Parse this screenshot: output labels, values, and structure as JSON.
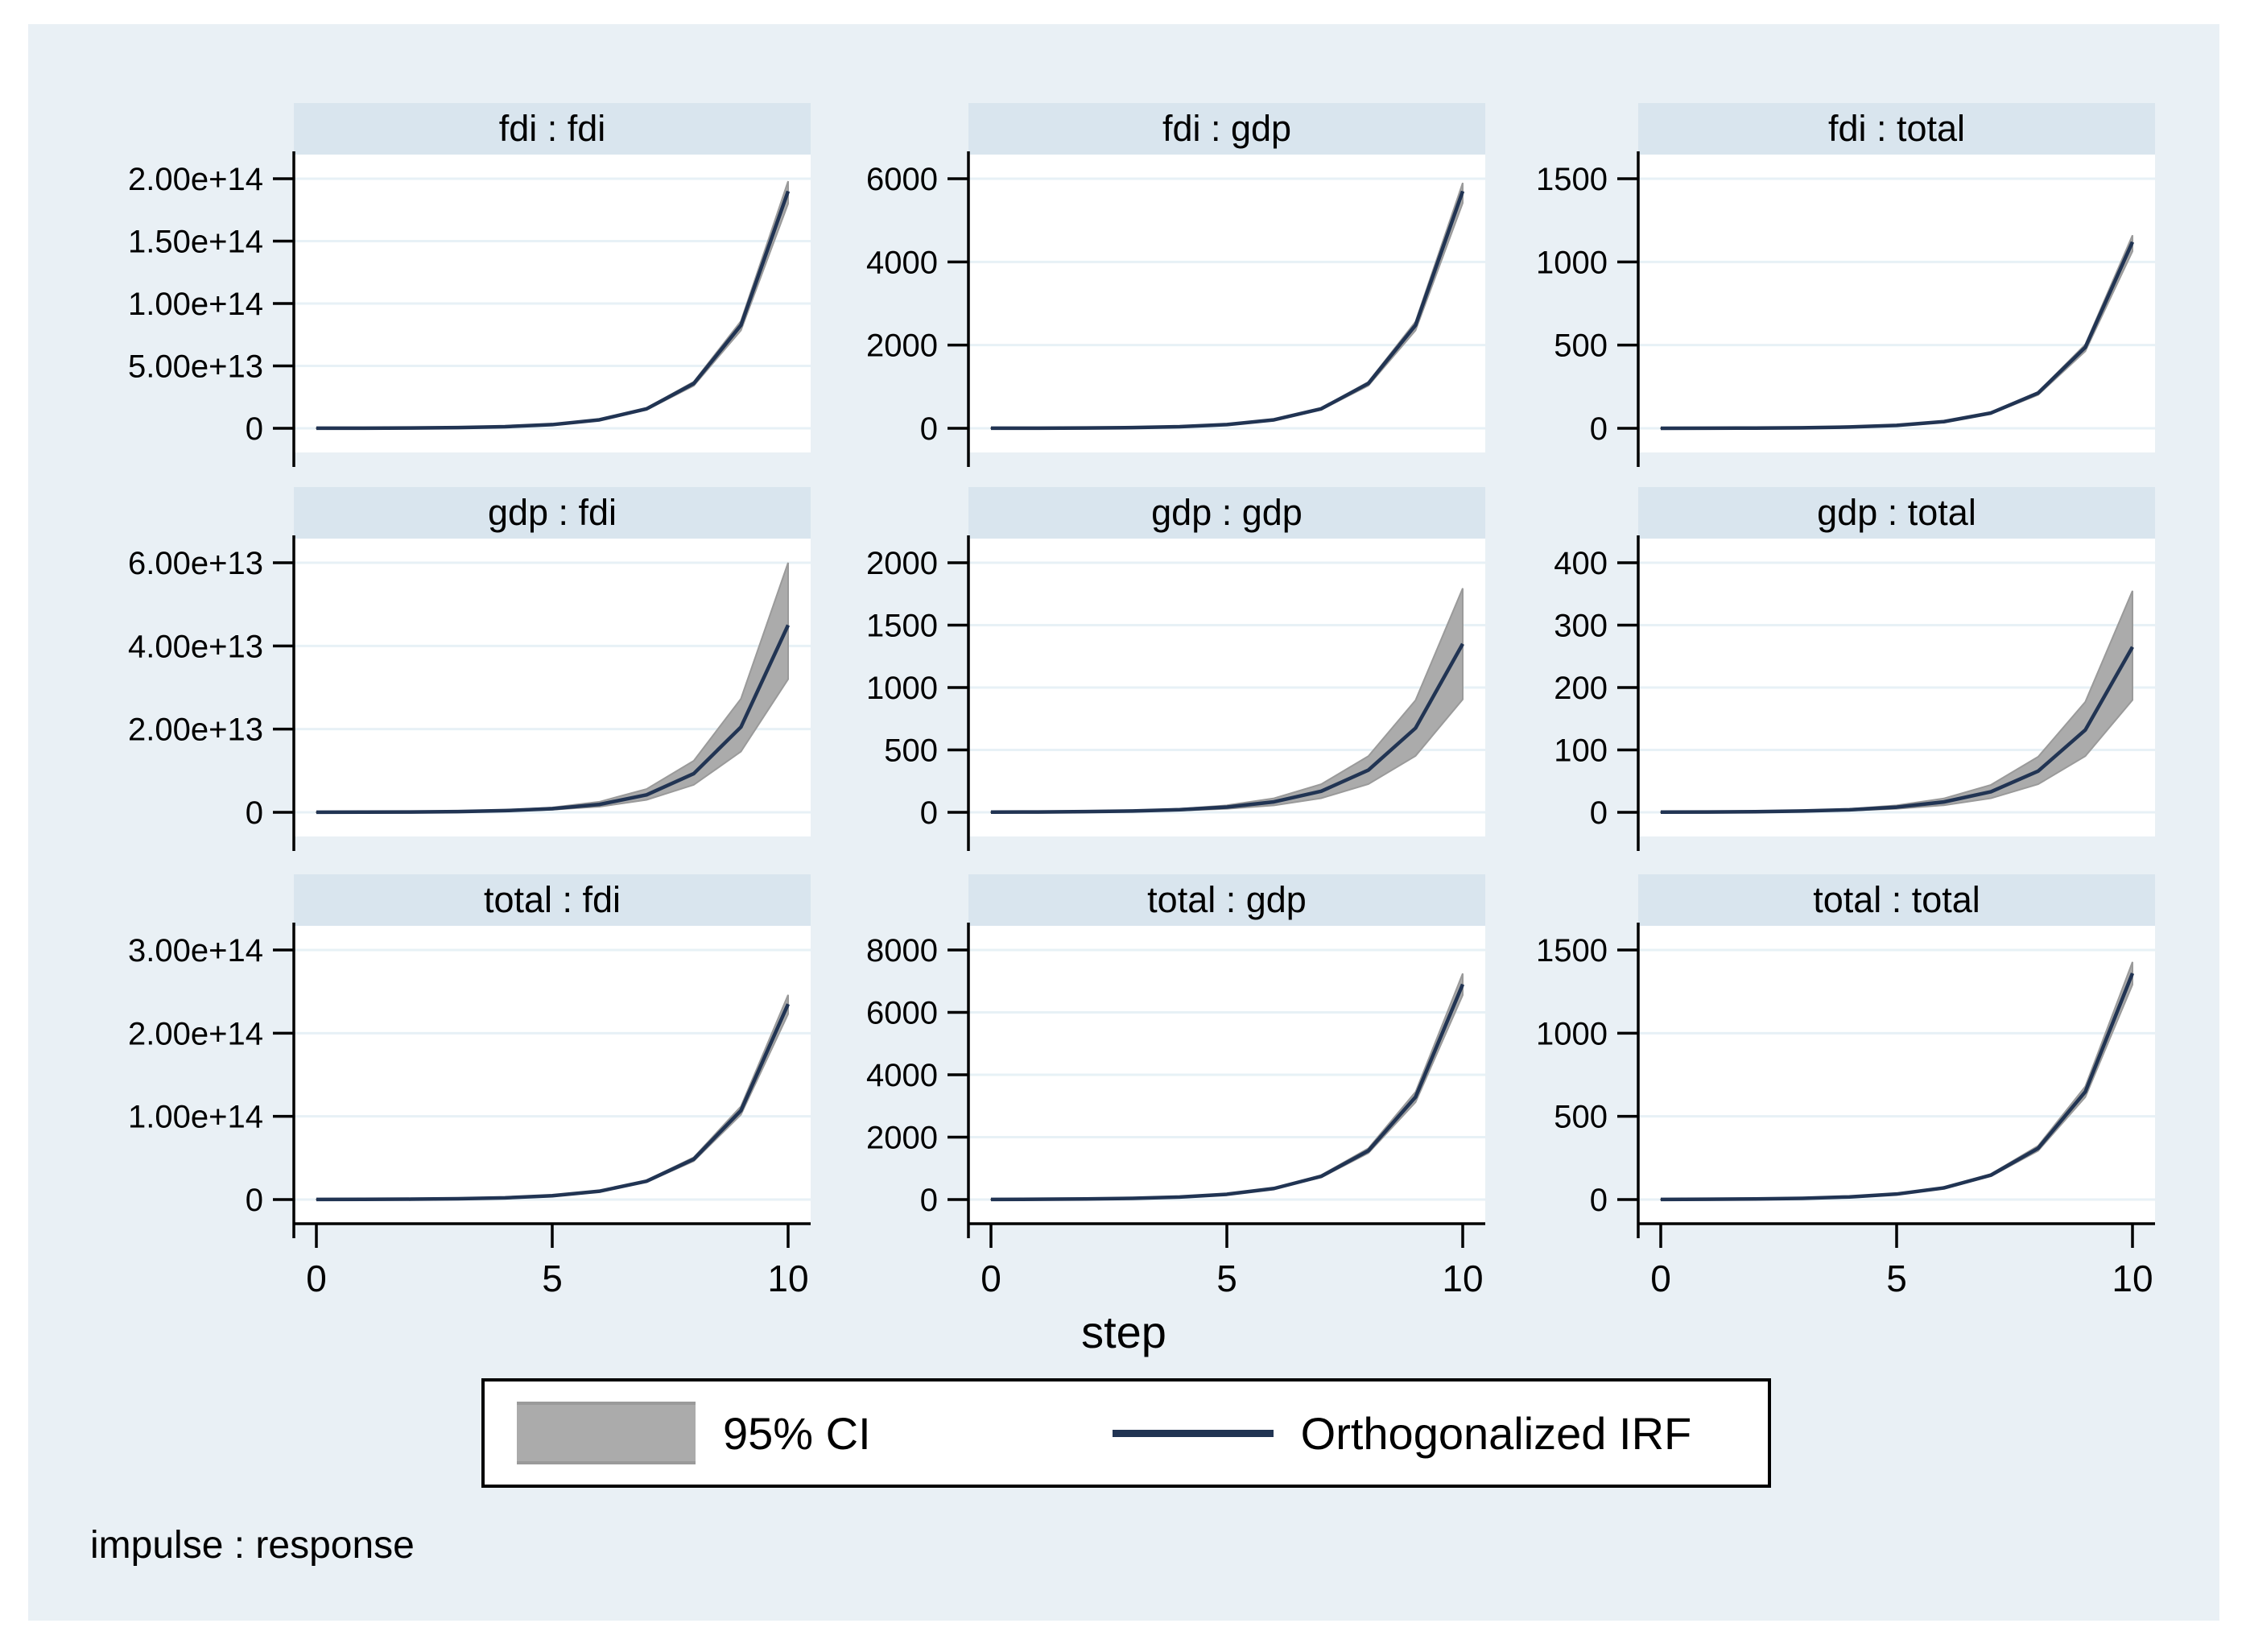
{
  "figure": {
    "xlabel": "step",
    "footer": "impulse : response",
    "colors": {
      "canvas_bg": "#e9f0f5",
      "panel_title_bg": "#d9e5ee",
      "plot_bg": "#ffffff",
      "gridline": "#e7f1f6",
      "axis": "#000000",
      "irf_line_navy": "#213453",
      "ci_band_gray": "#ababab",
      "ci_band_edge": "#9a9a9a"
    }
  },
  "legend": {
    "items": [
      {
        "swatch": "ci-band-swatch",
        "label": "95% CI"
      },
      {
        "swatch": "irf-line-swatch",
        "label": "Orthogonalized IRF"
      }
    ]
  },
  "chart_data": [
    {
      "type": "area",
      "title": "fdi : fdi",
      "impulse": "fdi",
      "response": "fdi",
      "x": [
        0,
        1,
        2,
        3,
        4,
        5,
        6,
        7,
        8,
        9,
        10
      ],
      "mid": [
        46000000000.0,
        105000000000.0,
        243000000000.0,
        558000000000.0,
        1280000000000.0,
        2950000000000.0,
        6790000000000.0,
        15600000000000.0,
        35900000000000.0,
        82600000000000.0,
        190000000000000.0
      ],
      "lo": [
        44000000000.0,
        100000000000.0,
        231000000000.0,
        530000000000.0,
        1220000000000.0,
        2800000000000.0,
        6450000000000.0,
        14800000000000.0,
        34100000000000.0,
        78500000000000.0,
        180000000000000.0
      ],
      "hi": [
        48000000000.0,
        109000000000.0,
        253000000000.0,
        580000000000.0,
        1330000000000.0,
        3070000000000.0,
        7060000000000.0,
        16200000000000.0,
        37300000000000.0,
        85900000000000.0,
        198000000000000.0
      ],
      "ymax": 200000000000000.0,
      "yticks": [
        {
          "v": 0,
          "label": "0"
        },
        {
          "v": 50000000000000.0,
          "label": "5.00e+13"
        },
        {
          "v": 100000000000000.0,
          "label": "1.00e+14"
        },
        {
          "v": 150000000000000.0,
          "label": "1.50e+14"
        },
        {
          "v": 200000000000000.0,
          "label": "2.00e+14"
        }
      ],
      "xticks": [
        {
          "v": 0,
          "label": "0"
        },
        {
          "v": 5,
          "label": "5"
        },
        {
          "v": 10,
          "label": "10"
        }
      ],
      "show_xaxis": false
    },
    {
      "type": "area",
      "title": "fdi : gdp",
      "impulse": "fdi",
      "response": "gdp",
      "x": [
        0,
        1,
        2,
        3,
        4,
        5,
        6,
        7,
        8,
        9,
        10
      ],
      "mid": [
        1.4,
        3.2,
        7.3,
        16.7,
        38.5,
        89,
        204,
        469,
        1078,
        2478,
        5700
      ],
      "lo": [
        1.3,
        3.0,
        6.9,
        15.9,
        36.6,
        85,
        194,
        446,
        1024,
        2354,
        5415
      ],
      "hi": [
        1.5,
        3.3,
        7.6,
        17.3,
        39.8,
        92,
        211,
        485,
        1116,
        2565,
        5900
      ],
      "ymax": 6000,
      "yticks": [
        {
          "v": 0,
          "label": "0"
        },
        {
          "v": 2000,
          "label": "2000"
        },
        {
          "v": 4000,
          "label": "4000"
        },
        {
          "v": 6000,
          "label": "6000"
        }
      ],
      "xticks": [
        {
          "v": 0,
          "label": "0"
        },
        {
          "v": 5,
          "label": "5"
        },
        {
          "v": 10,
          "label": "10"
        }
      ],
      "show_xaxis": false
    },
    {
      "type": "area",
      "title": "fdi : total",
      "impulse": "fdi",
      "response": "total",
      "x": [
        0,
        1,
        2,
        3,
        4,
        5,
        6,
        7,
        8,
        9,
        10
      ],
      "mid": [
        0.27,
        0.63,
        1.44,
        3.3,
        7.6,
        17.4,
        40,
        92,
        212,
        487,
        1120
      ],
      "lo": [
        0.26,
        0.6,
        1.37,
        3.1,
        7.2,
        16.5,
        38,
        87,
        201,
        463,
        1064
      ],
      "hi": [
        0.28,
        0.66,
        1.5,
        3.4,
        7.9,
        18.0,
        42,
        95,
        219,
        504,
        1160
      ],
      "ymax": 1500,
      "yticks": [
        {
          "v": 0,
          "label": "0"
        },
        {
          "v": 500,
          "label": "500"
        },
        {
          "v": 1000,
          "label": "1000"
        },
        {
          "v": 1500,
          "label": "1500"
        }
      ],
      "xticks": [
        {
          "v": 0,
          "label": "0"
        },
        {
          "v": 5,
          "label": "5"
        },
        {
          "v": 10,
          "label": "10"
        }
      ],
      "show_xaxis": false
    },
    {
      "type": "area",
      "title": "gdp : fdi",
      "impulse": "gdp",
      "response": "fdi",
      "x": [
        0,
        1,
        2,
        3,
        4,
        5,
        6,
        7,
        8,
        9,
        10
      ],
      "mid": [
        17000000000.0,
        37000000000.0,
        82000000000.0,
        180000000000.0,
        400000000000.0,
        870000000000.0,
        1900000000000.0,
        4200000000000.0,
        9300000000000.0,
        20500000000000.0,
        45000000000000.0
      ],
      "lo": [
        12000000000.0,
        26000000000.0,
        58000000000.0,
        130000000000.0,
        280000000000.0,
        620000000000.0,
        1350000000000.0,
        3000000000000.0,
        6600000000000.0,
        14600000000000.0,
        32000000000000.0
      ],
      "hi": [
        23000000000.0,
        49000000000.0,
        110000000000.0,
        240000000000.0,
        530000000000.0,
        1160000000000.0,
        2530000000000.0,
        5600000000000.0,
        12400000000000.0,
        27300000000000.0,
        60000000000000.0
      ],
      "ymax": 60000000000000.0,
      "yticks": [
        {
          "v": 0,
          "label": "0"
        },
        {
          "v": 20000000000000.0,
          "label": "2.00e+13"
        },
        {
          "v": 40000000000000.0,
          "label": "4.00e+13"
        },
        {
          "v": 60000000000000.0,
          "label": "6.00e+13"
        }
      ],
      "xticks": [
        {
          "v": 0,
          "label": "0"
        },
        {
          "v": 5,
          "label": "5"
        },
        {
          "v": 10,
          "label": "10"
        }
      ],
      "show_xaxis": false
    },
    {
      "type": "area",
      "title": "gdp : gdp",
      "impulse": "gdp",
      "response": "gdp",
      "x": [
        0,
        1,
        2,
        3,
        4,
        5,
        6,
        7,
        8,
        9,
        10
      ],
      "mid": [
        1.3,
        2.6,
        5.3,
        10.5,
        21,
        42,
        84,
        169,
        338,
        675,
        1350
      ],
      "lo": [
        0.9,
        1.7,
        3.5,
        7.0,
        14,
        28,
        56,
        113,
        226,
        452,
        905
      ],
      "hi": [
        1.7,
        3.5,
        7.0,
        14,
        28,
        56,
        112,
        225,
        450,
        898,
        1795
      ],
      "ymax": 2000,
      "yticks": [
        {
          "v": 0,
          "label": "0"
        },
        {
          "v": 500,
          "label": "500"
        },
        {
          "v": 1000,
          "label": "1000"
        },
        {
          "v": 1500,
          "label": "1500"
        },
        {
          "v": 2000,
          "label": "2000"
        }
      ],
      "xticks": [
        {
          "v": 0,
          "label": "0"
        },
        {
          "v": 5,
          "label": "5"
        },
        {
          "v": 10,
          "label": "10"
        }
      ],
      "show_xaxis": false
    },
    {
      "type": "area",
      "title": "gdp : total",
      "impulse": "gdp",
      "response": "total",
      "x": [
        0,
        1,
        2,
        3,
        4,
        5,
        6,
        7,
        8,
        9,
        10
      ],
      "mid": [
        0.26,
        0.52,
        1.0,
        2.1,
        4.1,
        8.3,
        16.6,
        33,
        66,
        132,
        265
      ],
      "lo": [
        0.18,
        0.35,
        0.7,
        1.4,
        2.8,
        5.6,
        11.3,
        22.5,
        45,
        90,
        180
      ],
      "hi": [
        0.35,
        0.69,
        1.4,
        2.8,
        5.5,
        11.1,
        22.2,
        44,
        89,
        177,
        355
      ],
      "ymax": 400,
      "yticks": [
        {
          "v": 0,
          "label": "0"
        },
        {
          "v": 100,
          "label": "100"
        },
        {
          "v": 200,
          "label": "200"
        },
        {
          "v": 300,
          "label": "300"
        },
        {
          "v": 400,
          "label": "400"
        }
      ],
      "xticks": [
        {
          "v": 0,
          "label": "0"
        },
        {
          "v": 5,
          "label": "5"
        },
        {
          "v": 10,
          "label": "10"
        }
      ],
      "show_xaxis": false
    },
    {
      "type": "area",
      "title": "total : fdi",
      "impulse": "total",
      "response": "fdi",
      "x": [
        0,
        1,
        2,
        3,
        4,
        5,
        6,
        7,
        8,
        9,
        10
      ],
      "mid": [
        89000000000.0,
        195000000000.0,
        430000000000.0,
        940000000000.0,
        2070000000000.0,
        4560000000000.0,
        10000000000000.0,
        22100000000000.0,
        48600000000000.0,
        107000000000000.0,
        235000000000000.0
      ],
      "lo": [
        85000000000.0,
        185000000000.0,
        410000000000.0,
        890000000000.0,
        1970000000000.0,
        4330000000000.0,
        9500000000000.0,
        21000000000000.0,
        46200000000000.0,
        102000000000000.0,
        223000000000000.0
      ],
      "hi": [
        93000000000.0,
        204000000000.0,
        450000000000.0,
        980000000000.0,
        2160000000000.0,
        4770000000000.0,
        10500000000000.0,
        23100000000000.0,
        50800000000000.0,
        112000000000000.0,
        246000000000000.0
      ],
      "ymax": 300000000000000.0,
      "yticks": [
        {
          "v": 0,
          "label": "0"
        },
        {
          "v": 100000000000000.0,
          "label": "1.00e+14"
        },
        {
          "v": 200000000000000.0,
          "label": "2.00e+14"
        },
        {
          "v": 300000000000000.0,
          "label": "3.00e+14"
        }
      ],
      "xticks": [
        {
          "v": 0,
          "label": "0"
        },
        {
          "v": 5,
          "label": "5"
        },
        {
          "v": 10,
          "label": "10"
        }
      ],
      "show_xaxis": true
    },
    {
      "type": "area",
      "title": "total : gdp",
      "impulse": "total",
      "response": "gdp",
      "x": [
        0,
        1,
        2,
        3,
        4,
        5,
        6,
        7,
        8,
        9,
        10
      ],
      "mid": [
        4.1,
        8.7,
        18,
        38,
        80,
        169,
        355,
        745,
        1565,
        3286,
        6900
      ],
      "lo": [
        3.9,
        8.3,
        17,
        36,
        76,
        161,
        337,
        708,
        1487,
        3122,
        6555
      ],
      "hi": [
        4.3,
        9.1,
        19,
        40,
        84,
        177,
        373,
        782,
        1643,
        3450,
        7245
      ],
      "ymax": 8000,
      "yticks": [
        {
          "v": 0,
          "label": "0"
        },
        {
          "v": 2000,
          "label": "2000"
        },
        {
          "v": 4000,
          "label": "4000"
        },
        {
          "v": 6000,
          "label": "6000"
        },
        {
          "v": 8000,
          "label": "8000"
        }
      ],
      "xticks": [
        {
          "v": 0,
          "label": "0"
        },
        {
          "v": 5,
          "label": "5"
        },
        {
          "v": 10,
          "label": "10"
        }
      ],
      "show_xaxis": true
    },
    {
      "type": "area",
      "title": "total : total",
      "impulse": "total",
      "response": "total",
      "x": [
        0,
        1,
        2,
        3,
        4,
        5,
        6,
        7,
        8,
        9,
        10
      ],
      "mid": [
        0.8,
        1.7,
        3.6,
        7.5,
        16,
        33,
        70,
        147,
        308,
        648,
        1360
      ],
      "lo": [
        0.76,
        1.6,
        3.4,
        7.1,
        15.2,
        31,
        66,
        140,
        293,
        616,
        1292
      ],
      "hi": [
        0.84,
        1.8,
        3.8,
        7.9,
        16.8,
        35,
        74,
        154,
        323,
        680,
        1428
      ],
      "ymax": 1500,
      "yticks": [
        {
          "v": 0,
          "label": "0"
        },
        {
          "v": 500,
          "label": "500"
        },
        {
          "v": 1000,
          "label": "1000"
        },
        {
          "v": 1500,
          "label": "1500"
        }
      ],
      "xticks": [
        {
          "v": 0,
          "label": "0"
        },
        {
          "v": 5,
          "label": "5"
        },
        {
          "v": 10,
          "label": "10"
        }
      ],
      "show_xaxis": true
    }
  ]
}
